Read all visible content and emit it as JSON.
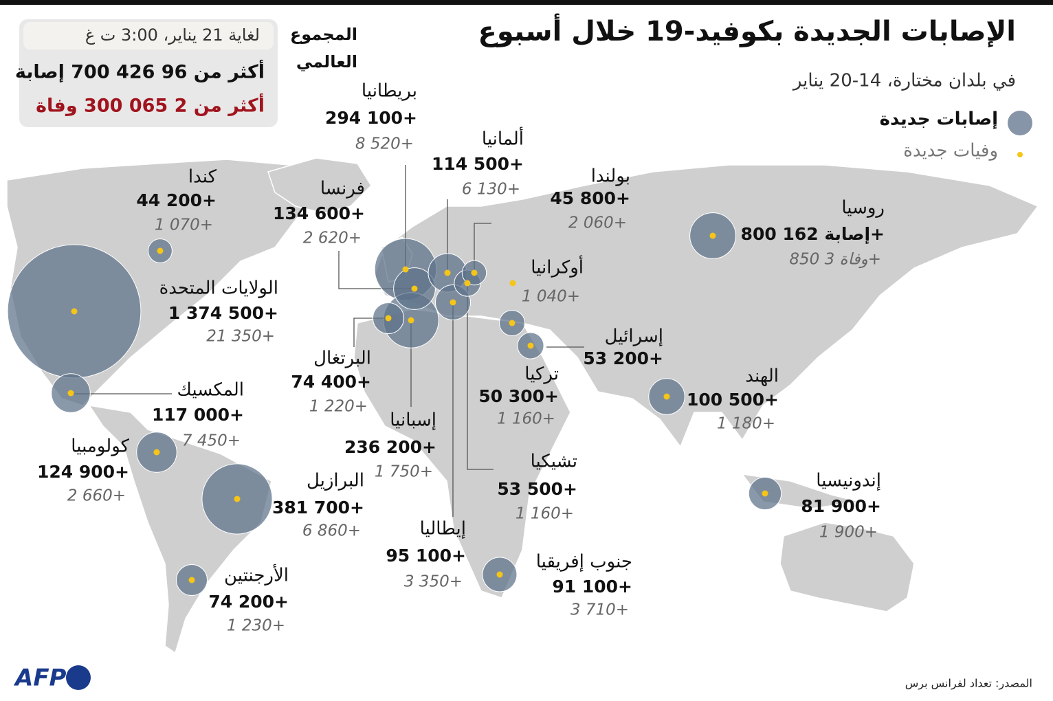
{
  "header": {
    "title": "الإصابات الجديدة بكوفيد-19 خلال أسبوع",
    "subtitle": "في بلدان مختارة، 14-20 يناير",
    "legend": {
      "cases": "إصابات جديدة",
      "deaths": "وفيات جديدة"
    }
  },
  "global": {
    "label": "المجموع العالمي",
    "date": "لغاية 21 يناير، 3:00 ت غ",
    "cases": "أكثر من 96 426 700 إصابة",
    "deaths": "أكثر من 2 065 300 وفاة"
  },
  "countries": [
    {
      "name": "كندا",
      "cases": 44200,
      "cases_label": "44 200+",
      "deaths_label": "1 070+"
    },
    {
      "name": "الولايات المتحدة",
      "cases": 1374500,
      "cases_label": "1 374 500+",
      "deaths_label": "21 350+"
    },
    {
      "name": "المكسيك",
      "cases": 117000,
      "cases_label": "117 000+",
      "deaths_label": "7 450+"
    },
    {
      "name": "كولومبيا",
      "cases": 124900,
      "cases_label": "124 900+",
      "deaths_label": "2 660+"
    },
    {
      "name": "البرازيل",
      "cases": 381700,
      "cases_label": "381 700+",
      "deaths_label": "6 860+"
    },
    {
      "name": "الأرجنتين",
      "cases": 74200,
      "cases_label": "74 200+",
      "deaths_label": "1 230+"
    },
    {
      "name": "بريطانيا",
      "cases": 294100,
      "cases_label": "294 100+",
      "deaths_label": "8 520+"
    },
    {
      "name": "فرنسا",
      "cases": 134600,
      "cases_label": "134 600+",
      "deaths_label": "2 620+"
    },
    {
      "name": "ألمانيا",
      "cases": 114500,
      "cases_label": "114 500+",
      "deaths_label": "6 130+"
    },
    {
      "name": "بولندا",
      "cases": 45800,
      "cases_label": "45 800+",
      "deaths_label": "2 060+"
    },
    {
      "name": "أوكرانيا",
      "deaths_label": "1 040+"
    },
    {
      "name": "البرتغال",
      "cases": 74400,
      "cases_label": "74 400+",
      "deaths_label": "1 220+"
    },
    {
      "name": "إسبانيا",
      "cases": 236200,
      "cases_label": "236 200+",
      "deaths_label": "1 750+"
    },
    {
      "name": "إيطاليا",
      "cases": 95100,
      "cases_label": "95 100+",
      "deaths_label": "3 350+"
    },
    {
      "name": "تشيكيا",
      "cases": 53500,
      "cases_label": "53 500+",
      "deaths_label": "1 160+"
    },
    {
      "name": "تركيا",
      "cases": 50300,
      "cases_label": "50 300+",
      "deaths_label": "1 160+"
    },
    {
      "name": "إسرائيل",
      "cases": 53200,
      "cases_label": "53 200+"
    },
    {
      "name": "روسيا",
      "cases": 162800,
      "cases_label": "إصابة 162 800+",
      "deaths_label": "وفاة 3 850+"
    },
    {
      "name": "الهند",
      "cases": 100500,
      "cases_label": "100 500+",
      "deaths_label": "1 180+"
    },
    {
      "name": "إندونيسيا",
      "cases": 81900,
      "cases_label": "81 900+",
      "deaths_label": "1 900+"
    },
    {
      "name": "جنوب إفريقيا",
      "cases": 91100,
      "cases_label": "91 100+",
      "deaths_label": "3 710+"
    }
  ],
  "footer": {
    "source": "المصدر: تعداد لفرانس برس",
    "logo": "AFP"
  }
}
